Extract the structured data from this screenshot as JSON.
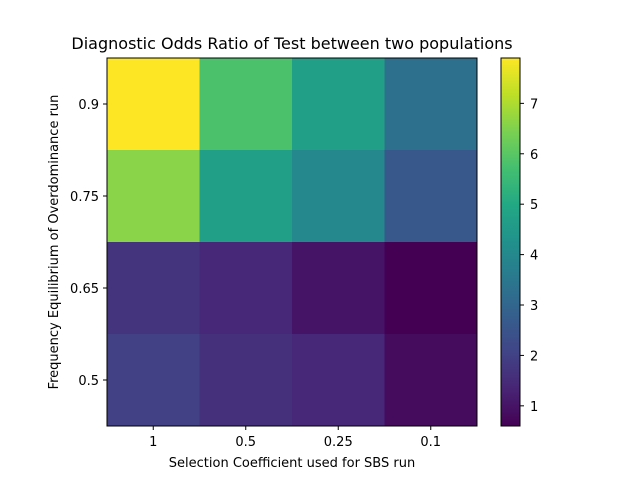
{
  "chart_data": {
    "type": "heatmap",
    "title": "Diagnostic Odds Ratio of Test between two populations",
    "xlabel": "Selection Coefficient used for SBS run",
    "ylabel": "Frequency Equilibrium of Overdominance run",
    "x_categories": [
      "1",
      "0.5",
      "0.25",
      "0.1"
    ],
    "y_categories": [
      "0.9",
      "0.75",
      "0.65",
      "0.5"
    ],
    "values": [
      [
        7.9,
        5.8,
        4.7,
        3.3
      ],
      [
        6.6,
        4.7,
        4.0,
        2.6
      ],
      [
        1.7,
        1.4,
        1.0,
        0.6
      ],
      [
        2.0,
        1.6,
        1.4,
        0.8
      ]
    ],
    "colormap": "viridis",
    "colorbar": {
      "range": [
        0.6,
        7.9
      ],
      "ticks": [
        "1",
        "2",
        "3",
        "4",
        "5",
        "6",
        "7"
      ]
    }
  }
}
